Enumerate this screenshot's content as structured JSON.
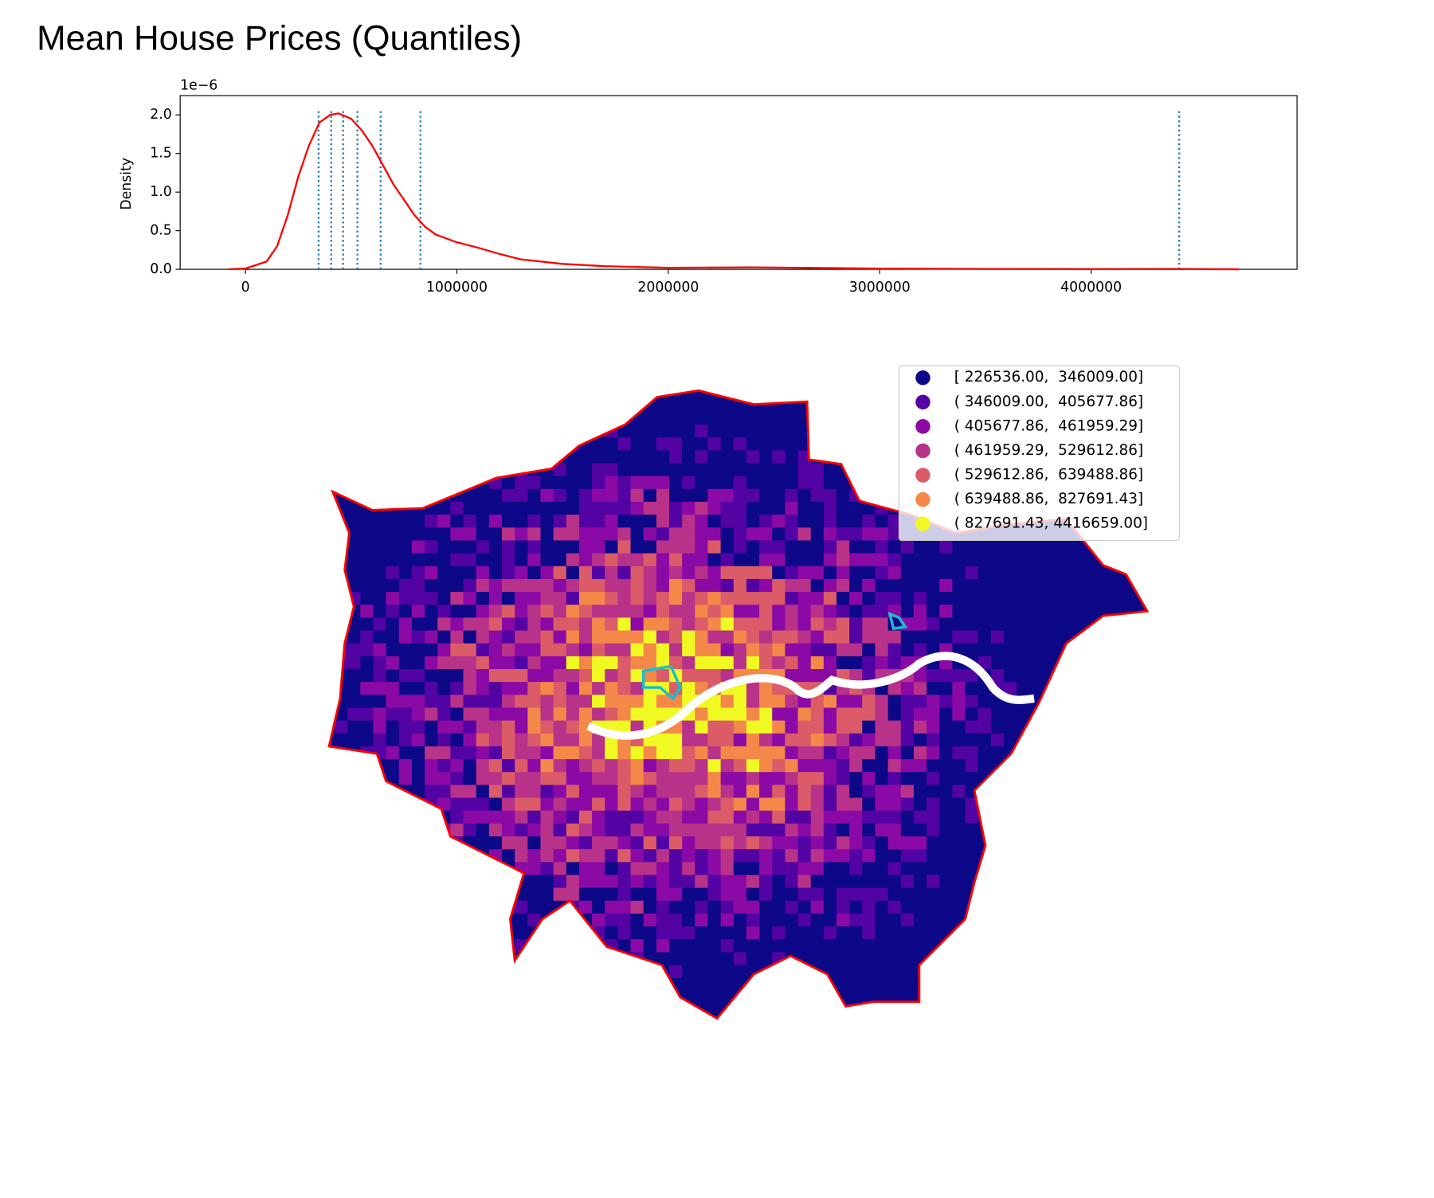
{
  "chart_data": [
    {
      "type": "line",
      "title": "Mean House Prices (Quantiles)",
      "y_axis_label": "Density",
      "y_offset_label": "1e−6",
      "x": [
        -80000,
        0,
        100000,
        150000,
        200000,
        250000,
        300000,
        350000,
        400000,
        440000,
        500000,
        550000,
        600000,
        650000,
        700000,
        750000,
        800000,
        850000,
        900000,
        1000000,
        1100000,
        1200000,
        1300000,
        1500000,
        1700000,
        2000000,
        2400000,
        2600000,
        3000000,
        3500000,
        4000000,
        4400000,
        4700000
      ],
      "series": [
        {
          "color": "#ff0000",
          "values": [
            0,
            0.01,
            0.1,
            0.3,
            0.7,
            1.2,
            1.6,
            1.9,
            2.0,
            2.02,
            1.95,
            1.8,
            1.6,
            1.35,
            1.1,
            0.9,
            0.7,
            0.55,
            0.45,
            0.35,
            0.28,
            0.2,
            0.13,
            0.07,
            0.04,
            0.02,
            0.025,
            0.02,
            0.01,
            0.005,
            0.003,
            0.004,
            0
          ]
        }
      ],
      "vlines": [
        346009,
        405677.86,
        461959.29,
        529612.86,
        639488.86,
        827691.43,
        4416659
      ],
      "vline_color": "#1f77b4",
      "xlim": [
        -308700,
        4974000
      ],
      "ylim": [
        0,
        2.25
      ],
      "xticks": [
        0,
        1000000,
        2000000,
        3000000,
        4000000
      ],
      "yticks": [
        {
          "value": 0,
          "label": "0.0"
        },
        {
          "value": 0.5,
          "label": "0.5"
        },
        {
          "value": 1,
          "label": "1.0"
        },
        {
          "value": 1.5,
          "label": "1.5"
        },
        {
          "value": 2,
          "label": "2.0"
        }
      ]
    },
    {
      "type": "map",
      "legend": [
        "[ 226536.00,  346009.00]",
        "( 346009.00,  405677.86]",
        "( 405677.86,  461959.29]",
        "( 461959.29,  529612.86]",
        "( 529612.86,  639488.86]",
        "( 639488.86,  827691.43]",
        "( 827691.43, 4416659.00]"
      ],
      "colors": [
        "#0d0887",
        "#5302a3",
        "#8b0aa5",
        "#b83289",
        "#db5c68",
        "#f48849",
        "#f0f921"
      ]
    }
  ]
}
